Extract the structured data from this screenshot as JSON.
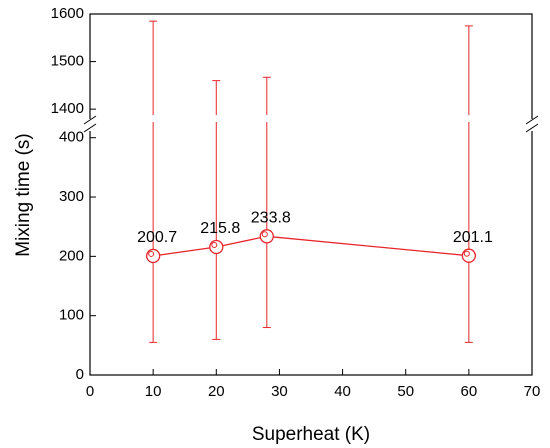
{
  "chart_data": {
    "type": "errorbar-line",
    "x_label": "Superheat (K)",
    "y_label": "Mixing time (s)",
    "x": [
      10,
      20,
      28,
      60
    ],
    "values": [
      200.7,
      215.8,
      233.8,
      201.1
    ],
    "lower": [
      55,
      60,
      80,
      55
    ],
    "upper": [
      1585,
      1460,
      1467,
      1575
    ],
    "color": "#e8262a",
    "xlim": [
      0,
      70
    ],
    "xticks": [
      0,
      10,
      20,
      30,
      40,
      50,
      60,
      70
    ],
    "ylim": [
      0,
      1600
    ],
    "y_break": [
      413,
      1373
    ],
    "yticks": [
      0,
      100,
      200,
      300,
      400,
      1400,
      1500,
      1600
    ]
  }
}
